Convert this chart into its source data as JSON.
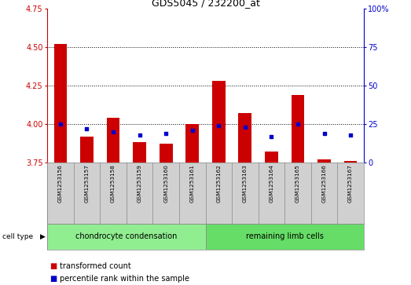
{
  "title": "GDS5045 / 232200_at",
  "samples": [
    "GSM1253156",
    "GSM1253157",
    "GSM1253158",
    "GSM1253159",
    "GSM1253160",
    "GSM1253161",
    "GSM1253162",
    "GSM1253163",
    "GSM1253164",
    "GSM1253165",
    "GSM1253166",
    "GSM1253167"
  ],
  "red_values": [
    4.52,
    3.92,
    4.04,
    3.88,
    3.87,
    4.0,
    4.28,
    4.07,
    3.82,
    4.19,
    3.77,
    3.76
  ],
  "blue_percentiles": [
    25,
    22,
    20,
    18,
    19,
    21,
    24,
    23,
    17,
    25,
    19,
    18
  ],
  "ylim_left": [
    3.75,
    4.75
  ],
  "ylim_right": [
    0,
    100
  ],
  "yticks_left": [
    3.75,
    4.0,
    4.25,
    4.5,
    4.75
  ],
  "yticks_right": [
    0,
    25,
    50,
    75,
    100
  ],
  "gridlines": [
    4.0,
    4.25,
    4.5
  ],
  "baseline": 3.75,
  "cell_types": [
    {
      "label": "chondrocyte condensation",
      "start": 0,
      "end": 6,
      "color": "#90ee90"
    },
    {
      "label": "remaining limb cells",
      "start": 6,
      "end": 12,
      "color": "#66dd66"
    }
  ],
  "bar_color": "#cc0000",
  "dot_color": "#0000cc",
  "plot_bg": "#ffffff",
  "sample_box_color": "#d0d0d0",
  "left_axis_color": "#cc0000",
  "right_axis_color": "#0000cc",
  "legend_items": [
    {
      "label": "transformed count",
      "color": "#cc0000"
    },
    {
      "label": "percentile rank within the sample",
      "color": "#0000cc"
    }
  ],
  "bar_width": 0.5,
  "dot_size": 12
}
